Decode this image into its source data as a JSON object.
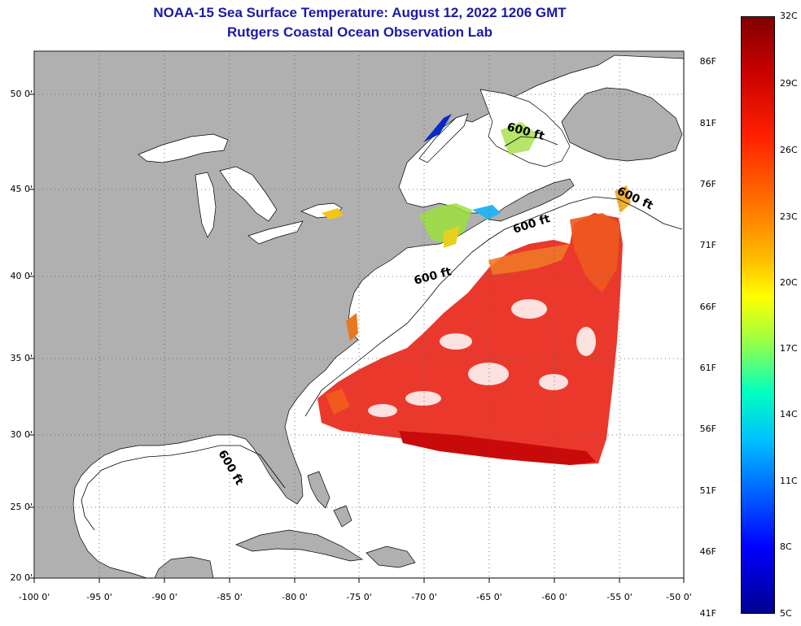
{
  "header": {
    "title": "NOAA-15 Sea Surface Temperature:  August 12, 2022 1206 GMT",
    "subtitle": "Rutgers Coastal Ocean Observation Lab"
  },
  "map": {
    "latitude_labels": [
      "50 0'",
      "45 0'",
      "40 0'",
      "35 0'",
      "30 0'",
      "25 0'",
      "20 0'"
    ],
    "longitude_labels": [
      "-100 0'",
      "-95 0'",
      "-90 0'",
      "-85 0'",
      "-80 0'",
      "-75 0'",
      "-70 0'",
      "-65 0'",
      "-60 0'",
      "-55 0'",
      "-50 0'"
    ],
    "contour_labels": [
      "600 ft",
      "600 ft",
      "600 ft",
      "600 ft",
      "600 ft"
    ],
    "colors": {
      "land": "#b0b0b0",
      "water": "#ffffff",
      "graticule": "#555555"
    }
  },
  "colorbar": {
    "fahrenheit_labels": [
      "86F",
      "81F",
      "76F",
      "71F",
      "66F",
      "61F",
      "56F",
      "51F",
      "46F",
      "41F"
    ],
    "celsius_labels": [
      "32C",
      "29C",
      "26C",
      "23C",
      "20C",
      "17C",
      "14C",
      "11C",
      "8C",
      "5C"
    ]
  }
}
